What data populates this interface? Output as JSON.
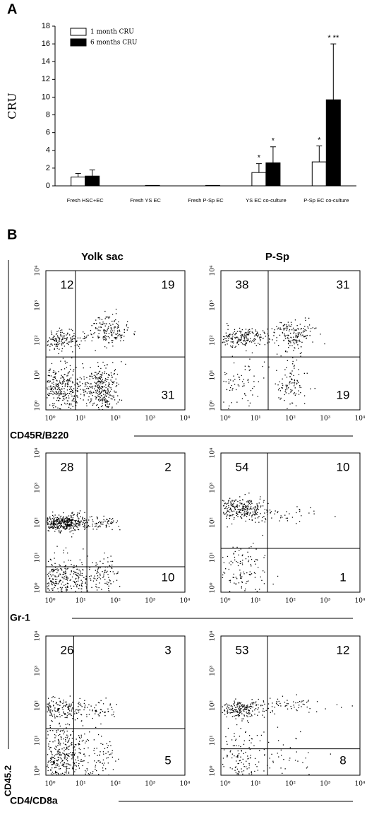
{
  "chart_data": [
    {
      "type": "bar",
      "panel_label": "A",
      "ylabel": "CRU",
      "categories": [
        "Fresh HSC+EC",
        "Fresh YS EC",
        "Fresh P-Sp EC",
        "YS EC co-culture",
        "P-Sp EC co-culture"
      ],
      "series": [
        {
          "name": "1 month  CRU",
          "color": "#ffffff",
          "values": [
            1.0,
            0,
            0,
            1.5,
            2.7
          ],
          "errors": [
            0.4,
            0,
            0,
            1.0,
            1.8
          ],
          "annotations": [
            null,
            null,
            null,
            "*",
            "*"
          ]
        },
        {
          "name": "6 months CRU",
          "color": "#000000",
          "values": [
            1.1,
            0.05,
            0.05,
            2.6,
            9.7
          ],
          "errors": [
            0.7,
            0,
            0,
            1.8,
            6.3
          ],
          "annotations": [
            null,
            null,
            null,
            "*",
            "* **"
          ]
        }
      ],
      "ylim": [
        0,
        18
      ],
      "yticks": [
        0,
        2,
        4,
        6,
        8,
        10,
        12,
        14,
        16,
        18
      ]
    },
    {
      "type": "flow",
      "panel_label": "B",
      "columns": [
        "Yolk sac",
        "P-Sp"
      ],
      "ylabel": "CD45.2",
      "xlim": [
        0,
        4
      ],
      "ylim": [
        0,
        4
      ],
      "ticks": [
        {
          "value": 0,
          "label": "10⁰"
        },
        {
          "value": 1,
          "label": "10¹"
        },
        {
          "value": 2,
          "label": "10²"
        },
        {
          "value": 3,
          "label": "10³"
        },
        {
          "value": 4,
          "label": "10⁴"
        }
      ],
      "rows": [
        {
          "marker": "CD45R/B220",
          "plots": [
            {
              "gate": [
                0.85,
                1.52
              ],
              "quadrants": {
                "upper_left": 12,
                "upper_right": 19,
                "lower_right": 31
              }
            },
            {
              "gate": [
                1.36,
                1.52
              ],
              "quadrants": {
                "upper_left": 38,
                "upper_right": 31,
                "lower_right": 19
              }
            }
          ]
        },
        {
          "marker": "Gr-1",
          "plots": [
            {
              "gate": [
                1.18,
                0.73
              ],
              "quadrants": {
                "upper_left": 28,
                "upper_right": 2,
                "lower_right": 10
              }
            },
            {
              "gate": [
                1.34,
                1.26
              ],
              "quadrants": {
                "upper_left": 54,
                "upper_right": 10,
                "lower_right": 1
              }
            }
          ]
        },
        {
          "marker": "CD4/CD8a",
          "plots": [
            {
              "gate": [
                0.8,
                1.34
              ],
              "quadrants": {
                "upper_left": 26,
                "upper_right": 3,
                "lower_right": 5
              }
            },
            {
              "gate": [
                1.34,
                0.76
              ],
              "quadrants": {
                "upper_left": 53,
                "upper_right": 12,
                "lower_right": 8
              }
            }
          ]
        }
      ]
    }
  ]
}
